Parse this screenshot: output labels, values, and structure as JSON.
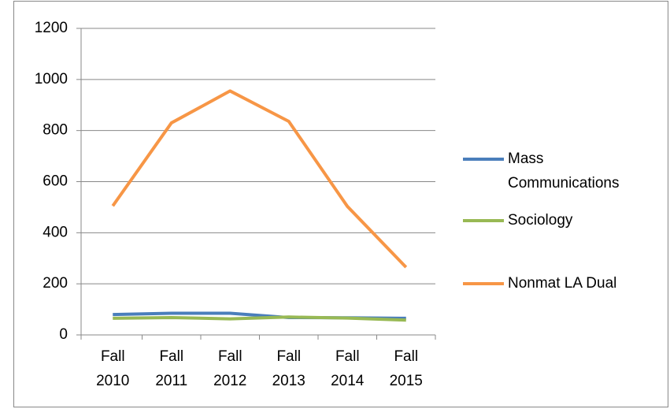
{
  "chart_data": {
    "type": "line",
    "categories": [
      "Fall 2010",
      "Fall 2011",
      "Fall 2012",
      "Fall 2013",
      "Fall 2014",
      "Fall 2015"
    ],
    "series": [
      {
        "name": "Mass Communications",
        "color": "#4a7ebb",
        "values": [
          80,
          85,
          85,
          68,
          67,
          65
        ]
      },
      {
        "name": "Sociology",
        "color": "#98b954",
        "values": [
          65,
          68,
          63,
          70,
          66,
          58
        ]
      },
      {
        "name": "Nonmat LA Dual",
        "color": "#f79646",
        "values": [
          505,
          830,
          955,
          836,
          503,
          265
        ]
      }
    ],
    "ylim": [
      0,
      1200
    ],
    "yticks": [
      0,
      200,
      400,
      600,
      800,
      1000,
      1200
    ],
    "grid": true,
    "legend": "right"
  }
}
